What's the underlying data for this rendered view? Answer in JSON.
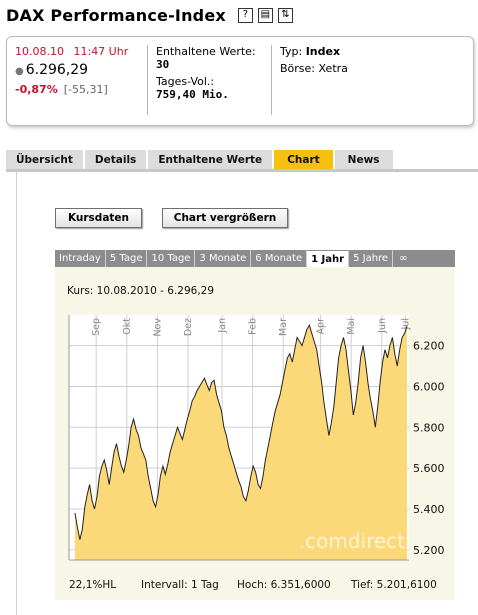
{
  "header": {
    "title": "DAX Performance-Index",
    "icons": [
      "help-icon",
      "print-icon",
      "refresh-icon"
    ]
  },
  "quote": {
    "date": "10.08.10",
    "time": "11:47 Uhr",
    "price": "6.296,29",
    "change_pct": "-0,87%",
    "change_abs": "[-55,31]",
    "constituents_label": "Enthaltene Werte:",
    "constituents_value": "30",
    "volume_label": "Tages-Vol.:",
    "volume_value": "759,40 Mio.",
    "type_label": "Typ:",
    "type_value": "Index",
    "exchange_label": "Börse:",
    "exchange_value": "Xetra"
  },
  "tabs": [
    {
      "label": "Übersicht",
      "active": false
    },
    {
      "label": "Details",
      "active": false
    },
    {
      "label": "Enthaltene Werte",
      "active": false
    },
    {
      "label": "Chart",
      "active": true
    },
    {
      "label": "News",
      "active": false
    }
  ],
  "buttons": {
    "kursdaten": "Kursdaten",
    "enlarge": "Chart vergrößern"
  },
  "range_tabs": [
    {
      "label": "Intraday",
      "active": false
    },
    {
      "label": "5 Tage",
      "active": false
    },
    {
      "label": "10 Tage",
      "active": false
    },
    {
      "label": "3 Monate",
      "active": false
    },
    {
      "label": "6 Monate",
      "active": false
    },
    {
      "label": "1 Jahr",
      "active": true
    },
    {
      "label": "5 Jahre",
      "active": false
    },
    {
      "label": "∞",
      "active": false
    }
  ],
  "colors": {
    "accent": "#f4c10f",
    "negative": "#c8102e",
    "area_fill": "#fbd878",
    "panel_bg": "#f8f6e6"
  },
  "chart_data": {
    "type": "area",
    "title": "Kurs: 10.08.2010 - 6.296,29",
    "ylim": [
      5150,
      6350
    ],
    "yticks": [
      {
        "value": 5200,
        "label": "5.200"
      },
      {
        "value": 5400,
        "label": "5.400"
      },
      {
        "value": 5600,
        "label": "5.600"
      },
      {
        "value": 5800,
        "label": "5.800"
      },
      {
        "value": 6000,
        "label": "6.000"
      },
      {
        "value": 6200,
        "label": "6.200"
      }
    ],
    "months": [
      "Sep",
      "Okt",
      "Nov",
      "Dez",
      "Jan",
      "Feb",
      "Mar",
      "Apr",
      "Mai",
      "Jun",
      "Jul"
    ],
    "month_positions": [
      0.08,
      0.17,
      0.26,
      0.35,
      0.45,
      0.54,
      0.63,
      0.74,
      0.83,
      0.92,
      0.99
    ],
    "watermark": ".comdirect",
    "series": [
      {
        "values": [
          5380,
          5310,
          5250,
          5300,
          5410,
          5470,
          5520,
          5440,
          5400,
          5460,
          5560,
          5610,
          5640,
          5590,
          5520,
          5600,
          5680,
          5720,
          5660,
          5610,
          5580,
          5640,
          5710,
          5800,
          5840,
          5790,
          5760,
          5700,
          5670,
          5640,
          5560,
          5500,
          5440,
          5410,
          5470,
          5560,
          5610,
          5570,
          5620,
          5680,
          5720,
          5760,
          5800,
          5770,
          5740,
          5790,
          5840,
          5880,
          5930,
          5950,
          5980,
          6000,
          6020,
          6040,
          6010,
          5980,
          6020,
          6030,
          5960,
          5920,
          5880,
          5800,
          5760,
          5700,
          5660,
          5620,
          5580,
          5540,
          5510,
          5460,
          5440,
          5490,
          5560,
          5610,
          5580,
          5520,
          5500,
          5560,
          5640,
          5700,
          5760,
          5820,
          5880,
          5920,
          5960,
          6020,
          6080,
          6140,
          6160,
          6120,
          6180,
          6240,
          6220,
          6200,
          6240,
          6280,
          6300,
          6260,
          6220,
          6180,
          6100,
          6020,
          5920,
          5840,
          5760,
          5820,
          5900,
          6020,
          6140,
          6200,
          6240,
          6180,
          6080,
          5980,
          5860,
          5920,
          6020,
          6140,
          6200,
          6120,
          6020,
          5940,
          5880,
          5800,
          5900,
          6020,
          6120,
          6180,
          6140,
          6200,
          6240,
          6160,
          6100,
          6180,
          6240,
          6260,
          6296
        ]
      }
    ]
  },
  "stats": {
    "hl": "22,1%HL",
    "interval": "Intervall: 1 Tag",
    "high": "Hoch: 6.351,6000",
    "low": "Tief: 5.201,6100"
  }
}
